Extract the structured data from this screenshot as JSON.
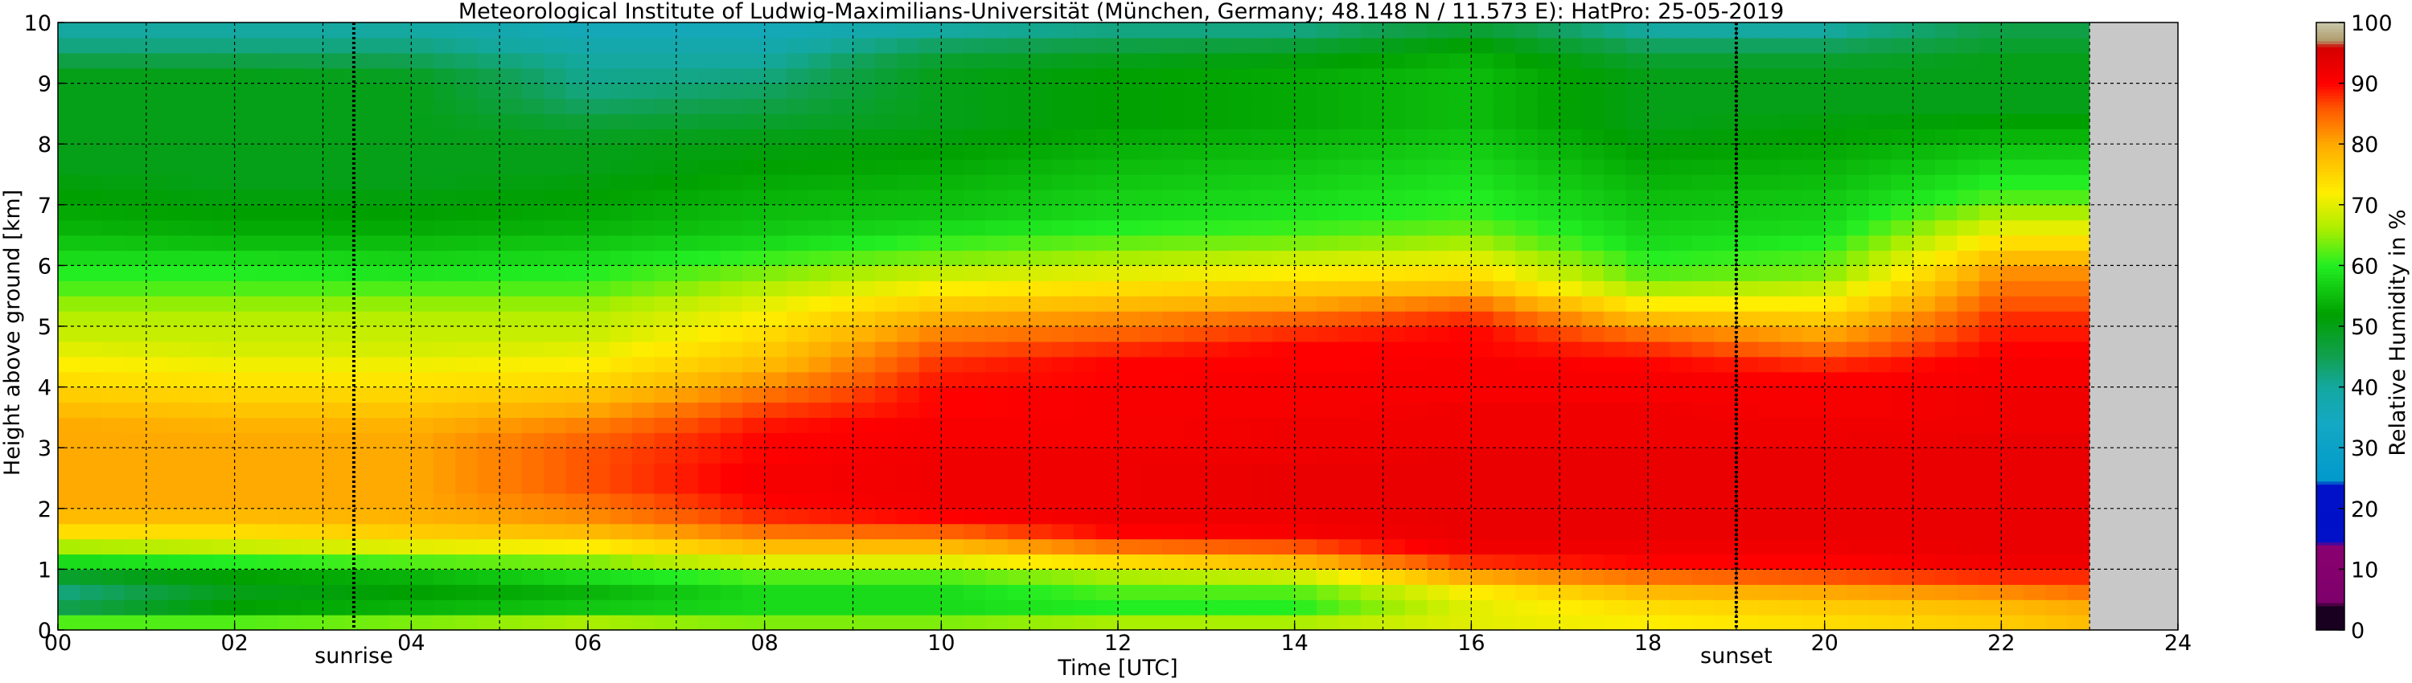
{
  "chart_data": {
    "type": "heatmap",
    "title": "Meteorological Institute of Ludwig-Maximilians-Universität (München, Germany; 48.148 N / 11.573 E):    HatPro: 25-05-2019",
    "xlabel": "Time [UTC]",
    "ylabel": "Height above ground [km]",
    "xlim": [
      0,
      24
    ],
    "ylim": [
      0,
      10
    ],
    "x_ticks": [
      "00",
      "02",
      "04",
      "06",
      "08",
      "10",
      "12",
      "14",
      "16",
      "18",
      "20",
      "22",
      "24"
    ],
    "y_ticks": [
      "0",
      "1",
      "2",
      "3",
      "4",
      "5",
      "6",
      "7",
      "8",
      "9",
      "10"
    ],
    "grid": true,
    "data_end_hour": 23,
    "markers": [
      {
        "label": "sunrise",
        "hour": 3.35
      },
      {
        "label": "sunset",
        "hour": 19.0
      }
    ],
    "colorbar": {
      "label": "Relative Humidity in %",
      "ticks": [
        "0",
        "10",
        "20",
        "30",
        "40",
        "50",
        "60",
        "70",
        "80",
        "90",
        "100"
      ],
      "stops": [
        {
          "value": 0,
          "color": "#1a0020"
        },
        {
          "value": 4,
          "color": "#1a0020"
        },
        {
          "value": 4.5,
          "color": "#7d006b"
        },
        {
          "value": 14,
          "color": "#8a0070"
        },
        {
          "value": 14.5,
          "color": "#0011c8"
        },
        {
          "value": 24,
          "color": "#0011c8"
        },
        {
          "value": 24.5,
          "color": "#0099cc"
        },
        {
          "value": 34,
          "color": "#14a8c4"
        },
        {
          "value": 40,
          "color": "#14a8a0"
        },
        {
          "value": 45,
          "color": "#11a050"
        },
        {
          "value": 52,
          "color": "#00a000"
        },
        {
          "value": 60,
          "color": "#22ee22"
        },
        {
          "value": 66,
          "color": "#aaee00"
        },
        {
          "value": 72,
          "color": "#ffee00"
        },
        {
          "value": 80,
          "color": "#ffaa00"
        },
        {
          "value": 86,
          "color": "#ff5500"
        },
        {
          "value": 90,
          "color": "#ff0000"
        },
        {
          "value": 96,
          "color": "#d40000"
        },
        {
          "value": 97,
          "color": "#b09a6a"
        },
        {
          "value": 100,
          "color": "#c8c8aa"
        }
      ]
    },
    "grid_resolution": {
      "time_step_hours": 0.25,
      "height_step_km": 0.25
    },
    "rh_profile_heights_km": [
      0,
      0.25,
      0.5,
      0.75,
      1.0,
      1.25,
      1.5,
      1.75,
      2.0,
      2.25,
      2.5,
      2.75,
      3.0,
      3.25,
      3.5,
      3.75,
      4.0,
      4.25,
      4.5,
      4.75,
      5.0,
      5.25,
      5.5,
      5.75,
      6.0,
      6.25,
      6.5,
      6.75,
      7.0,
      7.25,
      7.5,
      7.75,
      8.0,
      8.25,
      8.5,
      8.75,
      9.0,
      9.25,
      9.5,
      9.75
    ],
    "series": [
      {
        "hour": 0,
        "rh": [
          62,
          45,
          42,
          48,
          58,
          66,
          74,
          78,
          80,
          80,
          80,
          80,
          80,
          80,
          78,
          76,
          74,
          72,
          70,
          68,
          67,
          65,
          62,
          60,
          58,
          56,
          54,
          53,
          52,
          51,
          50,
          50,
          50,
          50,
          50,
          50,
          50,
          46,
          42,
          40
        ]
      },
      {
        "hour": 2,
        "rh": [
          62,
          52,
          50,
          52,
          60,
          68,
          74,
          78,
          80,
          80,
          80,
          80,
          80,
          79,
          77,
          75,
          73,
          71,
          69,
          68,
          67,
          65,
          62,
          60,
          58,
          55,
          53,
          52,
          51,
          50,
          50,
          50,
          50,
          50,
          50,
          50,
          50,
          46,
          42,
          40
        ]
      },
      {
        "hour": 4,
        "rh": [
          64,
          54,
          52,
          54,
          62,
          70,
          76,
          79,
          80,
          80,
          80,
          80,
          80,
          79,
          77,
          75,
          73,
          71,
          69,
          68,
          67,
          65,
          62,
          59,
          57,
          55,
          53,
          52,
          51,
          50,
          50,
          50,
          50,
          50,
          50,
          50,
          49,
          45,
          42,
          40
        ]
      },
      {
        "hour": 6,
        "rh": [
          66,
          56,
          54,
          58,
          64,
          72,
          78,
          82,
          84,
          86,
          86,
          86,
          85,
          83,
          80,
          77,
          74,
          72,
          70,
          68,
          67,
          65,
          62,
          60,
          58,
          56,
          54,
          53,
          52,
          51,
          50,
          50,
          49,
          47,
          44,
          42,
          41,
          40,
          38,
          36
        ]
      },
      {
        "hour": 8,
        "rh": [
          64,
          58,
          58,
          62,
          70,
          78,
          84,
          88,
          90,
          91,
          91,
          90,
          90,
          89,
          87,
          84,
          81,
          78,
          76,
          74,
          72,
          70,
          67,
          64,
          61,
          58,
          56,
          55,
          54,
          53,
          52,
          51,
          50,
          48,
          46,
          44,
          42,
          40,
          38,
          36
        ]
      },
      {
        "hour": 10,
        "rh": [
          64,
          58,
          58,
          62,
          70,
          78,
          85,
          90,
          92,
          92,
          92,
          92,
          91,
          91,
          90,
          90,
          89,
          88,
          86,
          83,
          80,
          76,
          72,
          68,
          64,
          61,
          58,
          56,
          55,
          54,
          53,
          52,
          51,
          50,
          50,
          50,
          50,
          48,
          44,
          40
        ]
      },
      {
        "hour": 12,
        "rh": [
          66,
          60,
          62,
          66,
          74,
          84,
          90,
          92,
          92,
          92,
          92,
          92,
          91,
          91,
          91,
          91,
          90,
          90,
          88,
          85,
          82,
          78,
          74,
          70,
          66,
          63,
          60,
          58,
          57,
          56,
          55,
          54,
          53,
          52,
          52,
          52,
          52,
          50,
          46,
          42
        ]
      },
      {
        "hour": 14,
        "rh": [
          66,
          60,
          62,
          68,
          78,
          86,
          91,
          92,
          93,
          93,
          93,
          92,
          92,
          92,
          91,
          91,
          91,
          90,
          90,
          88,
          85,
          80,
          76,
          72,
          68,
          64,
          61,
          59,
          58,
          57,
          56,
          55,
          54,
          53,
          53,
          53,
          53,
          51,
          47,
          42
        ]
      },
      {
        "hour": 16,
        "rh": [
          70,
          70,
          72,
          80,
          88,
          92,
          93,
          93,
          93,
          93,
          93,
          93,
          92,
          92,
          92,
          91,
          91,
          91,
          90,
          90,
          88,
          84,
          78,
          74,
          70,
          66,
          63,
          61,
          60,
          59,
          58,
          57,
          56,
          55,
          55,
          55,
          55,
          54,
          52,
          48
        ]
      },
      {
        "hour": 18,
        "rh": [
          72,
          74,
          78,
          84,
          90,
          92,
          93,
          93,
          93,
          93,
          93,
          93,
          92,
          92,
          92,
          91,
          91,
          90,
          88,
          84,
          78,
          72,
          66,
          62,
          60,
          58,
          57,
          56,
          55,
          54,
          53,
          52,
          51,
          50,
          50,
          50,
          50,
          48,
          44,
          40
        ]
      },
      {
        "hour": 20,
        "rh": [
          74,
          76,
          80,
          86,
          90,
          92,
          93,
          93,
          93,
          93,
          93,
          93,
          92,
          92,
          91,
          91,
          90,
          88,
          84,
          80,
          76,
          72,
          68,
          64,
          62,
          60,
          58,
          57,
          56,
          55,
          54,
          53,
          52,
          51,
          50,
          50,
          50,
          48,
          44,
          40
        ]
      },
      {
        "hour": 22,
        "rh": [
          76,
          78,
          82,
          88,
          92,
          93,
          93,
          93,
          93,
          93,
          93,
          93,
          93,
          92,
          92,
          92,
          91,
          91,
          90,
          89,
          88,
          86,
          84,
          82,
          78,
          74,
          70,
          66,
          62,
          60,
          58,
          56,
          54,
          52,
          50,
          50,
          50,
          50,
          48,
          46
        ]
      },
      {
        "hour": 23,
        "rh": [
          78,
          80,
          84,
          88,
          92,
          93,
          93,
          93,
          93,
          93,
          93,
          93,
          93,
          92,
          92,
          92,
          91,
          91,
          90,
          89,
          88,
          86,
          84,
          82,
          78,
          74,
          70,
          66,
          62,
          60,
          58,
          56,
          54,
          52,
          50,
          50,
          50,
          50,
          48,
          46
        ]
      }
    ]
  }
}
